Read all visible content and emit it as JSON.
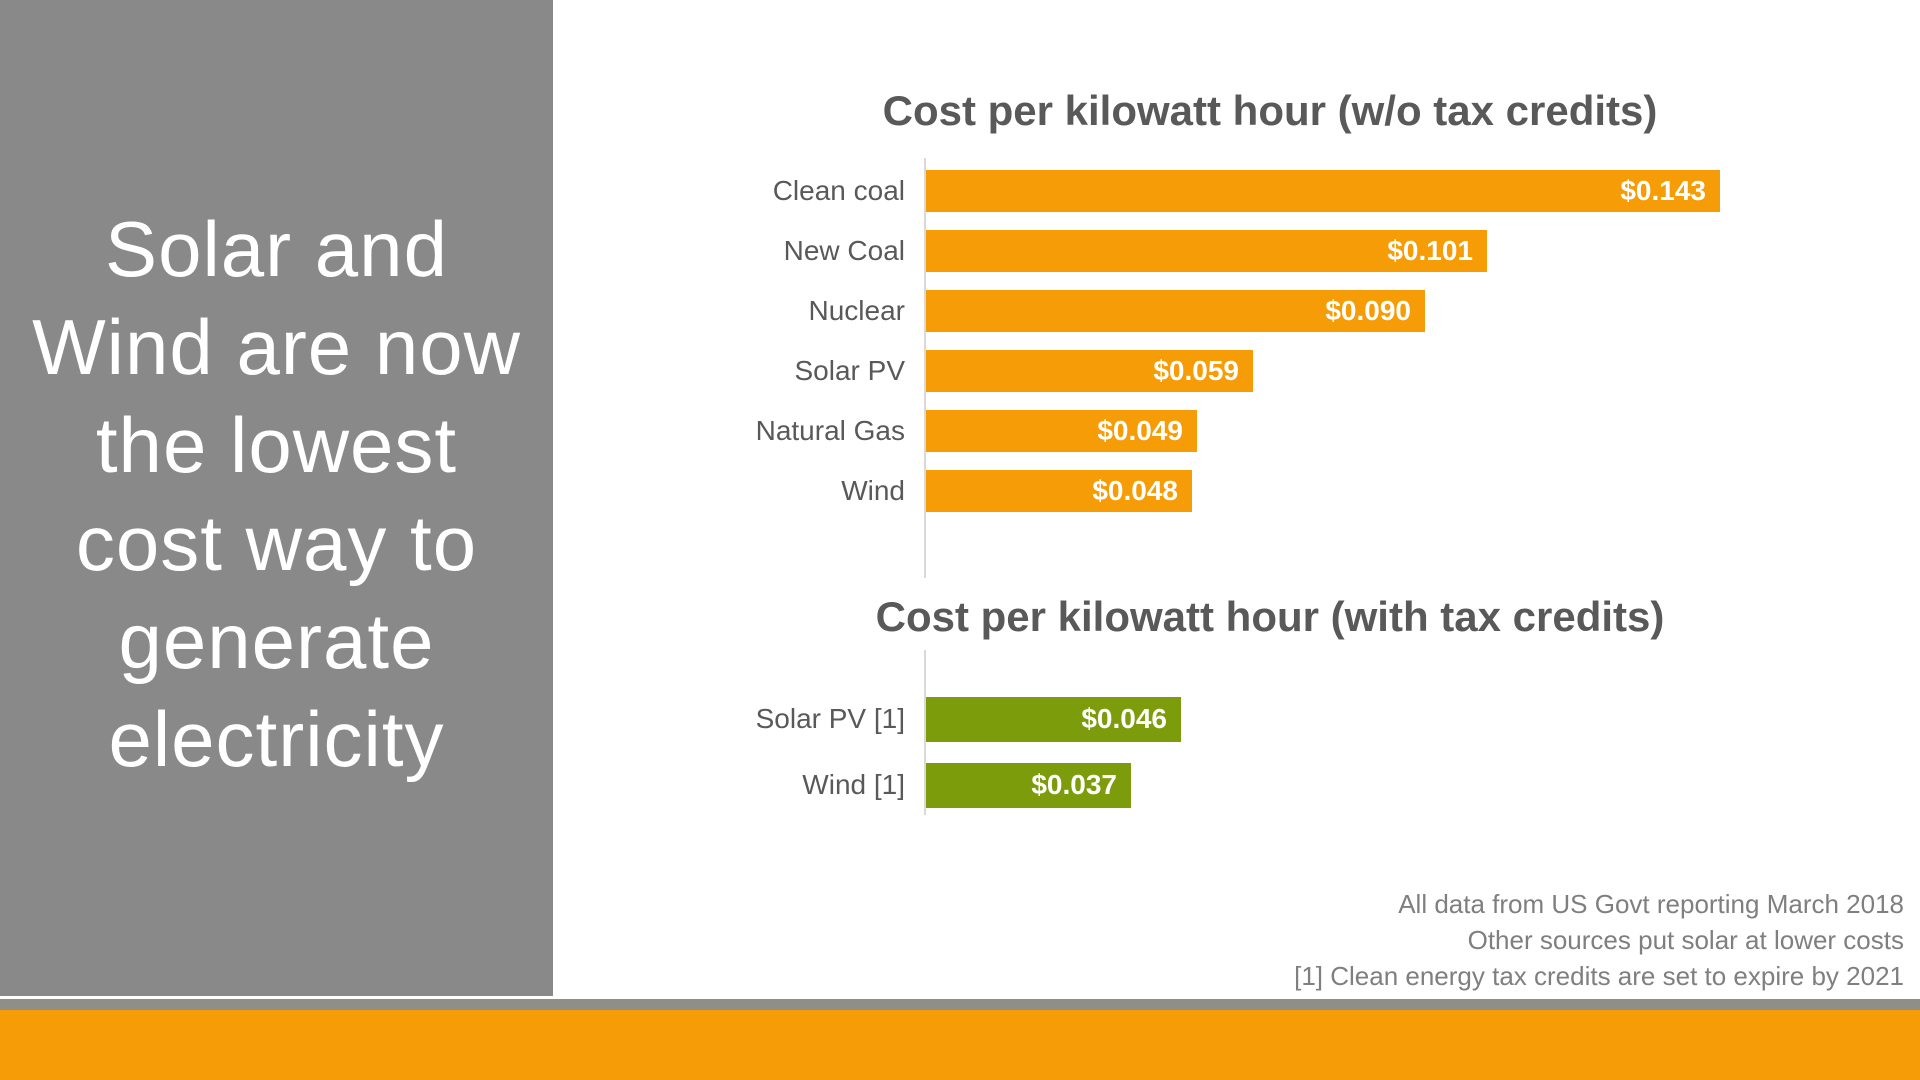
{
  "headline": {
    "lines": [
      "Solar and",
      "Wind are now",
      "the lowest",
      "cost way to",
      "generate",
      "electricity"
    ],
    "full_text": "Solar and Wind are now the lowest cost way to generate electricity"
  },
  "chart_data": [
    {
      "type": "bar",
      "orientation": "horizontal",
      "title": "Cost per kilowatt hour (w/o tax credits)",
      "categories": [
        "Clean coal",
        "New Coal",
        "Nuclear",
        "Solar PV",
        "Natural Gas",
        "Wind"
      ],
      "values": [
        0.143,
        0.101,
        0.09,
        0.059,
        0.049,
        0.048
      ],
      "value_labels": [
        "$0.143",
        "$0.101",
        "$0.090",
        "$0.059",
        "$0.049",
        "$0.048"
      ],
      "unit": "USD per kWh",
      "bar_color": "#f59c06",
      "xlim": [
        0,
        0.155
      ],
      "grid": false,
      "legend": "none"
    },
    {
      "type": "bar",
      "orientation": "horizontal",
      "title": "Cost per kilowatt hour (with tax credits)",
      "categories": [
        "Solar PV [1]",
        "Wind [1]"
      ],
      "values": [
        0.046,
        0.037
      ],
      "value_labels": [
        "$0.046",
        "$0.037"
      ],
      "unit": "USD per kWh",
      "bar_color": "#7d9c0b",
      "xlim": [
        0,
        0.155
      ],
      "grid": false,
      "legend": "none"
    }
  ],
  "footnotes": [
    "All data from US Govt reporting March 2018",
    "Other sources put solar at lower costs",
    "[1] Clean energy tax credits are set to expire by 2021"
  ],
  "colors": {
    "accent_orange": "#f59c06",
    "accent_green": "#7d9c0b",
    "panel_gray": "#898989",
    "divider_gray": "#8f8e87",
    "title_text": "#595959",
    "category_text": "#595959",
    "value_text": "#ffffff",
    "footnote_text": "#7f7f7f",
    "axis_line": "#d9d9d9",
    "headline_text": "#ffffff"
  }
}
